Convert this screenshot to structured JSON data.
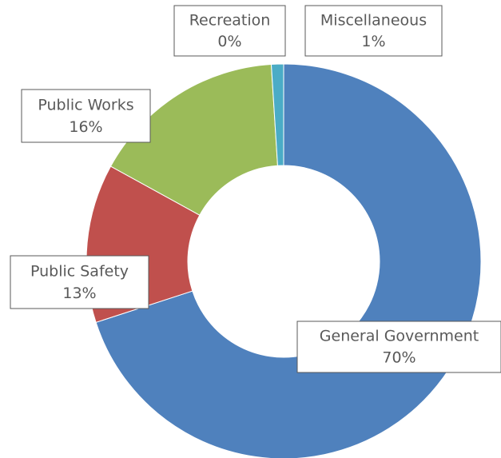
{
  "chart_data": {
    "type": "donut",
    "categories": [
      "General Government",
      "Public Safety",
      "Public Works",
      "Recreation",
      "Miscellaneous"
    ],
    "values": [
      70,
      13,
      16,
      0,
      1
    ],
    "value_labels": [
      "70%",
      "13%",
      "16%",
      "0%",
      "1%"
    ],
    "colors": [
      "#4f81bd",
      "#c0504d",
      "#9bbb59",
      "#8064a2",
      "#4bacc6"
    ]
  }
}
